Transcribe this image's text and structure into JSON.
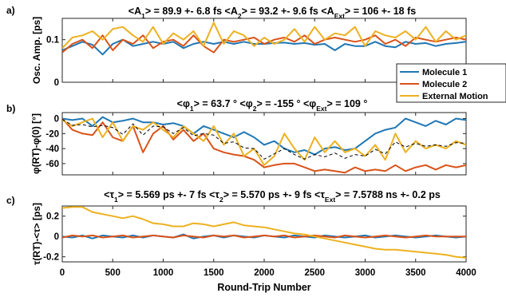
{
  "colors": {
    "molecule1": "#1f77b4",
    "molecule2": "#d95319",
    "external": "#edb120",
    "mean": "#000000"
  },
  "chart_data": [
    {
      "panel_label": "a)",
      "type": "line",
      "title_parts": [
        {
          "base": "<A",
          "sub": "1",
          "rest": "> = 89.9 +- 6.8 fs"
        },
        {
          "base": "<A",
          "sub": "2",
          "rest": "> = 93.2 +- 9.6 fs"
        },
        {
          "base": "<A",
          "sub": "Ext",
          "rest": "> = 106 +- 18 fs"
        }
      ],
      "ylabel": "Osc. Amp. [ps]",
      "xlim": [
        0,
        4000
      ],
      "ylim": [
        0,
        0.15
      ],
      "yticks": [
        "0",
        "0.1"
      ],
      "ytick_values": [
        0,
        0.1
      ],
      "x": [
        0,
        100,
        200,
        300,
        400,
        500,
        600,
        700,
        800,
        900,
        1000,
        1100,
        1200,
        1300,
        1400,
        1500,
        1600,
        1700,
        1800,
        1900,
        2000,
        2100,
        2200,
        2300,
        2400,
        2500,
        2600,
        2700,
        2800,
        2900,
        3000,
        3100,
        3200,
        3300,
        3400,
        3500,
        3600,
        3700,
        3800,
        3900,
        4000
      ],
      "series": [
        {
          "name": "Molecule 1",
          "color_key": "molecule1",
          "values": [
            0.075,
            0.085,
            0.095,
            0.088,
            0.065,
            0.09,
            0.1,
            0.085,
            0.09,
            0.095,
            0.09,
            0.095,
            0.08,
            0.09,
            0.095,
            0.09,
            0.095,
            0.09,
            0.095,
            0.09,
            0.09,
            0.092,
            0.093,
            0.09,
            0.092,
            0.088,
            0.09,
            0.075,
            0.09,
            0.085,
            0.085,
            0.095,
            0.085,
            0.082,
            0.095,
            0.09,
            0.092,
            0.085,
            0.09,
            0.092,
            0.095
          ]
        },
        {
          "name": "Molecule 2",
          "color_key": "molecule2",
          "values": [
            0.07,
            0.09,
            0.1,
            0.08,
            0.11,
            0.075,
            0.1,
            0.09,
            0.11,
            0.08,
            0.095,
            0.1,
            0.085,
            0.11,
            0.085,
            0.07,
            0.1,
            0.095,
            0.1,
            0.105,
            0.09,
            0.1,
            0.105,
            0.095,
            0.11,
            0.09,
            0.1,
            0.105,
            0.1,
            0.095,
            0.1,
            0.11,
            0.09,
            0.1,
            0.085,
            0.105,
            0.1,
            0.095,
            0.1,
            0.105,
            0.1
          ]
        },
        {
          "name": "External Motion",
          "color_key": "external",
          "values": [
            0.08,
            0.105,
            0.11,
            0.12,
            0.1,
            0.125,
            0.13,
            0.11,
            0.095,
            0.13,
            0.09,
            0.115,
            0.1,
            0.12,
            0.085,
            0.14,
            0.09,
            0.12,
            0.11,
            0.085,
            0.105,
            0.09,
            0.1,
            0.125,
            0.095,
            0.13,
            0.1,
            0.115,
            0.11,
            0.13,
            0.085,
            0.12,
            0.11,
            0.105,
            0.12,
            0.1,
            0.13,
            0.095,
            0.12,
            0.1,
            0.11
          ]
        }
      ]
    },
    {
      "panel_label": "b)",
      "type": "line",
      "title_parts": [
        {
          "base": "<φ",
          "sub": "1",
          "rest": "> = 63.7 °"
        },
        {
          "base": "<φ",
          "sub": "2",
          "rest": "> = -155 °"
        },
        {
          "base": "<φ",
          "sub": "Ext",
          "rest": "> = 109 °"
        }
      ],
      "ylabel": "φ(RT)-φ(0) [°]",
      "xlim": [
        0,
        4000
      ],
      "ylim": [
        -75,
        8
      ],
      "yticks": [
        "0",
        "-20",
        "-40",
        "-60"
      ],
      "ytick_values": [
        0,
        -20,
        -40,
        -60
      ],
      "x": [
        0,
        100,
        200,
        300,
        400,
        500,
        600,
        700,
        800,
        900,
        1000,
        1100,
        1200,
        1300,
        1400,
        1500,
        1600,
        1700,
        1800,
        1900,
        2000,
        2100,
        2200,
        2300,
        2400,
        2500,
        2600,
        2700,
        2800,
        2900,
        3000,
        3100,
        3200,
        3300,
        3400,
        3500,
        3600,
        3700,
        3800,
        3900,
        4000
      ],
      "series": [
        {
          "name": "Molecule 1",
          "color_key": "molecule1",
          "values": [
            0,
            -2,
            0,
            -10,
            2,
            -5,
            -3,
            0,
            -5,
            -5,
            -8,
            -6,
            -10,
            -20,
            -10,
            -15,
            -20,
            -25,
            -18,
            -25,
            -35,
            -30,
            -40,
            -45,
            -42,
            -48,
            -40,
            -38,
            -42,
            -40,
            -30,
            -20,
            -15,
            -12,
            0,
            -5,
            -10,
            -3,
            -8,
            0,
            -2
          ]
        },
        {
          "name": "Molecule 2",
          "color_key": "molecule2",
          "values": [
            0,
            -15,
            -20,
            -22,
            -5,
            -25,
            -30,
            -10,
            -45,
            -20,
            -10,
            -28,
            -15,
            -30,
            -20,
            -40,
            -45,
            -48,
            -50,
            -55,
            -65,
            -62,
            -60,
            -60,
            -65,
            -70,
            -68,
            -70,
            -72,
            -65,
            -70,
            -68,
            -70,
            -62,
            -70,
            -65,
            -62,
            -68,
            -62,
            -65,
            -62
          ]
        },
        {
          "name": "External Motion",
          "color_key": "external",
          "values": [
            -2,
            -10,
            -5,
            0,
            -25,
            -5,
            -30,
            -10,
            -15,
            -5,
            -15,
            -25,
            -10,
            -20,
            -30,
            -10,
            -35,
            -20,
            -50,
            -40,
            -62,
            -50,
            -20,
            -40,
            -55,
            -25,
            -45,
            -30,
            -45,
            -40,
            -50,
            -35,
            -55,
            -20,
            -45,
            -30,
            -40,
            -35,
            -40,
            -30,
            -35
          ]
        },
        {
          "name": "",
          "color_key": "mean",
          "dashed": true,
          "values": [
            -1,
            -9,
            -8,
            -11,
            -9,
            -12,
            -21,
            -7,
            -22,
            -10,
            -11,
            -20,
            -12,
            -23,
            -20,
            -22,
            -33,
            -31,
            -39,
            -40,
            -54,
            -47,
            -40,
            -48,
            -54,
            -48,
            -51,
            -46,
            -53,
            -48,
            -50,
            -41,
            -47,
            -31,
            -38,
            -33,
            -37,
            -35,
            -37,
            -32,
            -33
          ]
        }
      ]
    },
    {
      "panel_label": "c)",
      "type": "line",
      "title_parts": [
        {
          "base": "<τ",
          "sub": "1",
          "rest": "> = 5.569 ps +- 7 fs"
        },
        {
          "base": "<τ",
          "sub": "2",
          "rest": "> = 5.570 ps +- 9 fs"
        },
        {
          "base": "<τ",
          "sub": "Ext",
          "rest": "> = 7.5788 ns +- 0.2 ps"
        }
      ],
      "ylabel": "τ(RT)-<τ> [ps]",
      "xlabel": "Round-Trip Number",
      "xlim": [
        0,
        4000
      ],
      "ylim": [
        -0.25,
        0.3
      ],
      "yticks": [
        "0.2",
        "0",
        "-0.2"
      ],
      "ytick_values": [
        0.2,
        0,
        -0.2
      ],
      "xticks": [
        "0",
        "500",
        "1000",
        "1500",
        "2000",
        "2500",
        "3000",
        "3500",
        "4000"
      ],
      "xtick_values": [
        0,
        500,
        1000,
        1500,
        2000,
        2500,
        3000,
        3500,
        4000
      ],
      "x": [
        0,
        100,
        200,
        300,
        400,
        500,
        600,
        700,
        800,
        900,
        1000,
        1100,
        1200,
        1300,
        1400,
        1500,
        1600,
        1700,
        1800,
        1900,
        2000,
        2100,
        2200,
        2300,
        2400,
        2500,
        2600,
        2700,
        2800,
        2900,
        3000,
        3100,
        3200,
        3300,
        3400,
        3500,
        3600,
        3700,
        3800,
        3900,
        4000
      ],
      "series": [
        {
          "name": "Molecule 1",
          "color_key": "molecule1",
          "values": [
            0,
            -0.01,
            0.01,
            -0.02,
            0.01,
            0,
            -0.01,
            0.01,
            -0.01,
            0.01,
            0,
            -0.01,
            0.02,
            -0.02,
            0,
            0.01,
            -0.01,
            0.01,
            0,
            -0.01,
            0.01,
            0,
            -0.01,
            0.01,
            0,
            -0.01,
            0.01,
            0,
            -0.01,
            0,
            0.01,
            -0.01,
            0,
            0.01,
            0,
            -0.01,
            0,
            0.01,
            0,
            -0.01,
            0
          ]
        },
        {
          "name": "Molecule 2",
          "color_key": "molecule2",
          "values": [
            -0.01,
            0.01,
            0,
            0.01,
            -0.01,
            0,
            0.01,
            -0.01,
            0,
            0.01,
            0,
            -0.01,
            0.01,
            0,
            -0.01,
            0.01,
            0,
            0.01,
            -0.01,
            0,
            0.01,
            0,
            0.01,
            -0.01,
            0,
            0.01,
            0,
            -0.01,
            0.01,
            0,
            -0.01,
            0,
            0.01,
            0,
            -0.01,
            0,
            0.01,
            0,
            0,
            0,
            0
          ]
        },
        {
          "name": "External Motion",
          "color_key": "external",
          "values": [
            0.28,
            0.29,
            0.29,
            0.24,
            0.22,
            0.2,
            0.18,
            0.2,
            0.17,
            0.13,
            0.12,
            0.1,
            0.1,
            0.13,
            0.12,
            0.1,
            0.12,
            0.14,
            0.11,
            0.1,
            0.09,
            0.07,
            0.05,
            0.03,
            0.02,
            0,
            -0.02,
            -0.04,
            -0.06,
            -0.08,
            -0.1,
            -0.12,
            -0.13,
            -0.13,
            -0.14,
            -0.15,
            -0.16,
            -0.17,
            -0.18,
            -0.2,
            -0.21
          ]
        }
      ]
    }
  ],
  "legend": {
    "placement": "right-between-panels-a-and-b",
    "entries": [
      {
        "label": "Molecule 1",
        "color_key": "molecule1"
      },
      {
        "label": "Molecule 2",
        "color_key": "molecule2"
      },
      {
        "label": "External Motion",
        "color_key": "external"
      }
    ]
  }
}
